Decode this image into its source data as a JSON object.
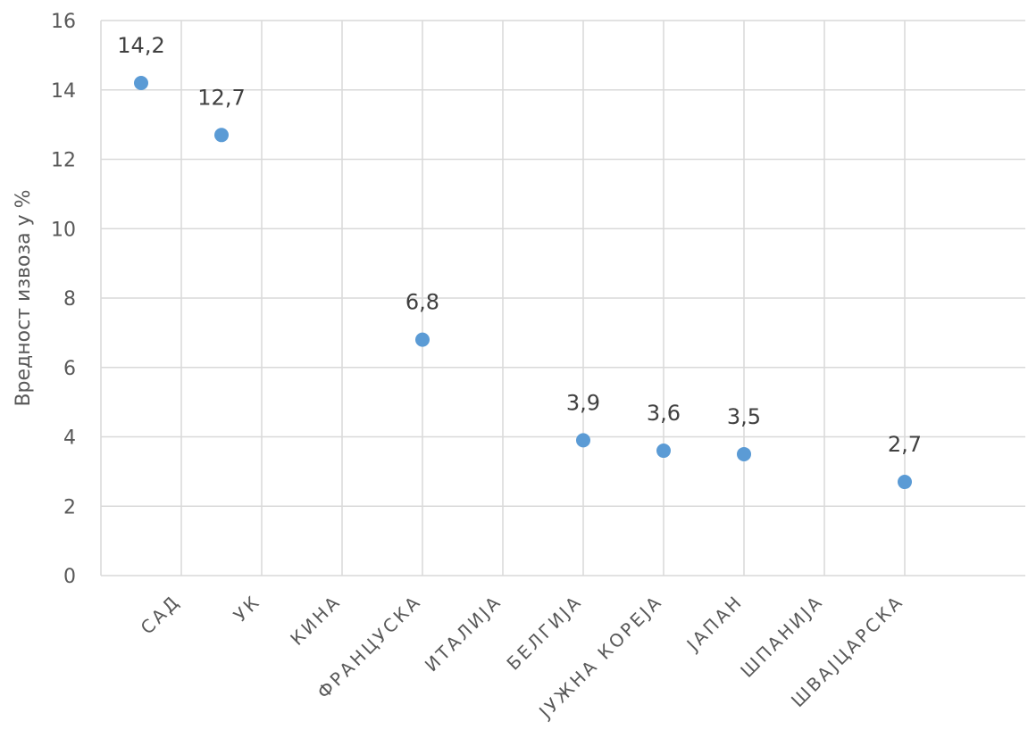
{
  "chart_data": {
    "type": "scatter",
    "title": "",
    "xlabel": "",
    "ylabel": "Вредност извоза у %",
    "ylim": [
      0,
      16
    ],
    "yticks": [
      0,
      2,
      4,
      6,
      8,
      10,
      12,
      14,
      16
    ],
    "grid": true,
    "legend": "none",
    "marker_color": "#5B9BD5",
    "categories": [
      "САД",
      "УК",
      "КИНА",
      "ФРАНЦУСКА",
      "ИТАЛИЈА",
      "БЕЛГИЈА",
      "ЈУЖНА КОРЕЈА",
      "ЈАПАН",
      "ШПАНИЈА",
      "ШВАЈЦАРСКА"
    ],
    "points": [
      {
        "x": 0.5,
        "y": 14.2,
        "label": "14,2"
      },
      {
        "x": 1.5,
        "y": 12.7,
        "label": "12,7"
      },
      {
        "x": 4.0,
        "y": 6.8,
        "label": "6,8"
      },
      {
        "x": 6.0,
        "y": 3.9,
        "label": "3,9"
      },
      {
        "x": 7.0,
        "y": 3.6,
        "label": "3,6"
      },
      {
        "x": 8.0,
        "y": 3.5,
        "label": "3,5"
      },
      {
        "x": 10.0,
        "y": 2.7,
        "label": "2,7"
      }
    ],
    "x_range": [
      0,
      11.5
    ],
    "category_x": [
      1,
      2,
      3,
      4,
      5,
      6,
      7,
      8,
      9,
      10
    ]
  }
}
